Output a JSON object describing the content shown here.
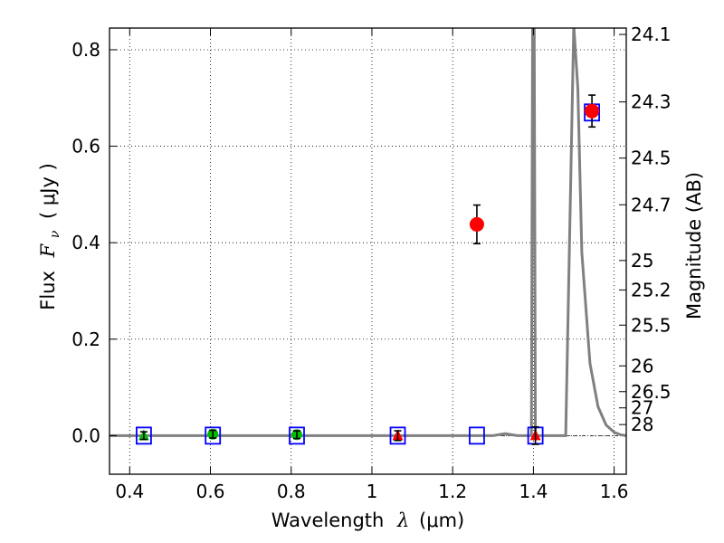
{
  "chart_data": {
    "type": "scatter",
    "xlabel_prefix": "Wavelength",
    "xlabel_symbol": "λ",
    "xlabel_unit": "(μm)",
    "ylabel_prefix": "Flux",
    "ylabel_symbol": "F",
    "ylabel_subscript": "ν",
    "ylabel_unit": "( μJy )",
    "y2label": "Magnitude (AB)",
    "xlim": [
      0.35,
      1.63
    ],
    "ylim": [
      -0.08,
      0.845
    ],
    "grid": true,
    "xticks": [
      {
        "value": 0.4,
        "label": "0.4"
      },
      {
        "value": 0.6,
        "label": "0.6"
      },
      {
        "value": 0.8,
        "label": "0.8"
      },
      {
        "value": 1.0,
        "label": "1"
      },
      {
        "value": 1.2,
        "label": "1.2"
      },
      {
        "value": 1.4,
        "label": "1.4"
      },
      {
        "value": 1.6,
        "label": "1.6"
      }
    ],
    "yticks": [
      {
        "value": 0.0,
        "label": "0.0"
      },
      {
        "value": 0.2,
        "label": "0.2"
      },
      {
        "value": 0.4,
        "label": "0.4"
      },
      {
        "value": 0.6,
        "label": "0.6"
      },
      {
        "value": 0.8,
        "label": "0.8"
      }
    ],
    "magnitude_ticks": [
      {
        "value": 24.1,
        "label": "24.1"
      },
      {
        "value": 24.3,
        "label": "24.3"
      },
      {
        "value": 24.5,
        "label": "24.5"
      },
      {
        "value": 24.7,
        "label": "24.7"
      },
      {
        "value": 25.0,
        "label": "25"
      },
      {
        "value": 25.2,
        "label": "25.2"
      },
      {
        "value": 25.5,
        "label": "25.5"
      },
      {
        "value": 26.0,
        "label": "26"
      },
      {
        "value": 26.5,
        "label": "26.5"
      },
      {
        "value": 27.0,
        "label": "27"
      },
      {
        "value": 28.0,
        "label": "28"
      }
    ],
    "model_points": [
      {
        "x": 0.435,
        "y": 0.0
      },
      {
        "x": 0.606,
        "y": 0.0
      },
      {
        "x": 0.814,
        "y": 0.0
      },
      {
        "x": 1.064,
        "y": 0.0
      },
      {
        "x": 1.26,
        "y": 0.0
      },
      {
        "x": 1.405,
        "y": 0.0
      },
      {
        "x": 1.545,
        "y": 0.67
      }
    ],
    "detections": [
      {
        "x": 1.26,
        "y": 0.438,
        "err": 0.04
      },
      {
        "x": 1.545,
        "y": 0.673,
        "err": 0.033
      }
    ],
    "optical_points": [
      {
        "x": 0.606,
        "y": 0.003,
        "err": 0.008
      },
      {
        "x": 0.814,
        "y": 0.002,
        "err": 0.008
      }
    ],
    "upper_limits_green": [
      {
        "x": 0.435,
        "y": 0.0,
        "err": 0.008
      }
    ],
    "upper_limits_red": [
      {
        "x": 1.064,
        "y": 0.0,
        "err": 0.01
      },
      {
        "x": 1.405,
        "y": 0.0,
        "err": 0.018
      }
    ],
    "sed_curve": [
      [
        0.35,
        0.0
      ],
      [
        0.5,
        0.0
      ],
      [
        0.7,
        0.0
      ],
      [
        0.9,
        0.0
      ],
      [
        1.1,
        0.0
      ],
      [
        1.3,
        0.0
      ],
      [
        1.33,
        0.004
      ],
      [
        1.36,
        0.0
      ],
      [
        1.395,
        0.0
      ],
      [
        1.398,
        0.845
      ],
      [
        1.402,
        0.845
      ],
      [
        1.405,
        0.0
      ],
      [
        1.45,
        0.0
      ],
      [
        1.48,
        0.0
      ],
      [
        1.5,
        0.85
      ],
      [
        1.51,
        0.72
      ],
      [
        1.52,
        0.38
      ],
      [
        1.54,
        0.15
      ],
      [
        1.56,
        0.06
      ],
      [
        1.58,
        0.022
      ],
      [
        1.6,
        0.007
      ],
      [
        1.615,
        0.002
      ],
      [
        1.63,
        0.0
      ]
    ],
    "colors": {
      "model_box": "#0000ff",
      "detection": "#ff0000",
      "optical": "#00bb00",
      "upper_red": "#ff0000",
      "upper_green": "#00bb00",
      "curve": "#808080",
      "errorbar": "#000000"
    }
  }
}
